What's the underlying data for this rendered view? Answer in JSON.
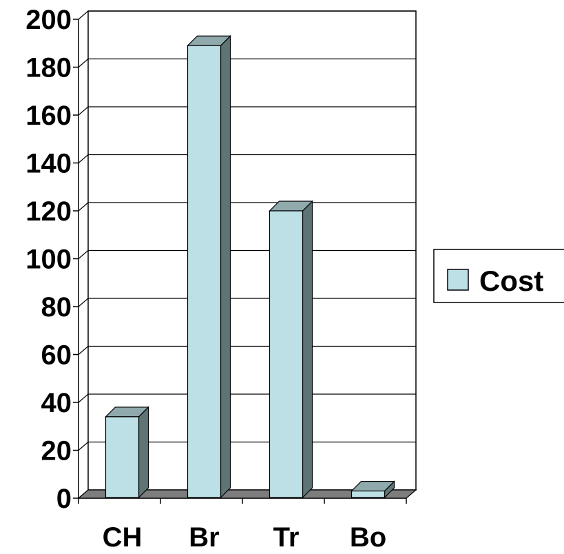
{
  "chart_data": {
    "type": "bar",
    "categories": [
      "CH",
      "Br",
      "Tr",
      "Bo"
    ],
    "series": [
      {
        "name": "Cost",
        "values": [
          34,
          189,
          120,
          3
        ]
      }
    ],
    "ylim": [
      0,
      200
    ],
    "yticks": [
      0,
      20,
      40,
      60,
      80,
      100,
      120,
      140,
      160,
      180,
      200
    ],
    "grid": true,
    "legend": "right",
    "style": "3d-column",
    "colors": {
      "bar_front": "#bde0e6",
      "bar_top": "#8fa9ad",
      "bar_side": "#5f7474",
      "floor": "#7d7d7d",
      "gridline": "#000000"
    }
  }
}
